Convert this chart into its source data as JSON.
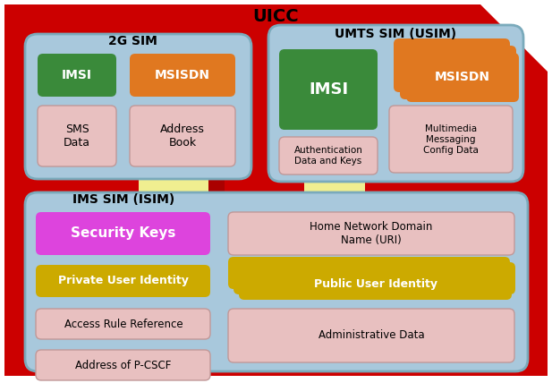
{
  "title": "UICC",
  "uicc_color": "#cc0000",
  "uicc_clip": 75,
  "sim_box_color": "#a8c8dc",
  "sim_box_edge": "#7aaabb",
  "green": "#3a8a3a",
  "orange": "#e07820",
  "pink": "#e8c0c0",
  "pink_edge": "#c09898",
  "magenta": "#dd44dd",
  "yellow": "#ccaa00",
  "yellow_light": "#f0ee90",
  "dark_red_strip": "#aa0000",
  "white": "#ffffff",
  "labels": {
    "uicc": "UICC",
    "sim2g": "2G SIM",
    "umts": "UMTS SIM (USIM)",
    "isim": "IMS SIM (ISIM)",
    "imsi": "IMSI",
    "msisdn": "MSISDN",
    "sms": "SMS\nData",
    "addr_book": "Address\nBook",
    "auth": "Authentication\nData and Keys",
    "mms": "Multimedia\nMessaging\nConfig Data",
    "sec_keys": "Security Keys",
    "home_net": "Home Network Domain\nName (URI)",
    "priv_id": "Private User Identity",
    "pub_id": "Public User Identity",
    "arr": "Access Rule Reference",
    "pcscf": "Address of P-CSCF",
    "admin": "Administrative Data"
  }
}
